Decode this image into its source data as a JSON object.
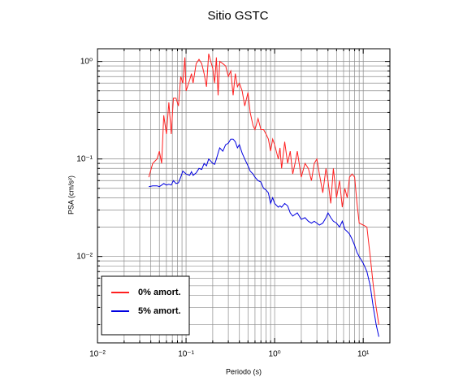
{
  "chart_data": {
    "type": "line",
    "title": "Sitio GSTC",
    "xlabel": "Periodo (s)",
    "ylabel": "PSA (cm/s²)",
    "xscale": "log",
    "yscale": "log",
    "grid": true,
    "legend": "lower left",
    "xlim": [
      0.01,
      20
    ],
    "ylim": [
      0.0013,
      1.35
    ],
    "xticks": [
      {
        "value": 0.01,
        "label": "10⁻²"
      },
      {
        "value": 0.1,
        "label": "10⁻¹"
      },
      {
        "value": 1,
        "label": "10⁰"
      },
      {
        "value": 10,
        "label": "10¹"
      }
    ],
    "yticks": [
      {
        "value": 0.01,
        "label": "10⁻²"
      },
      {
        "value": 0.1,
        "label": "10⁻¹"
      },
      {
        "value": 1,
        "label": "10⁰"
      }
    ],
    "x": [
      0.038,
      0.042,
      0.047,
      0.05,
      0.053,
      0.056,
      0.06,
      0.064,
      0.068,
      0.072,
      0.077,
      0.082,
      0.087,
      0.092,
      0.097,
      0.1,
      0.11,
      0.115,
      0.12,
      0.13,
      0.14,
      0.15,
      0.16,
      0.17,
      0.18,
      0.19,
      0.2,
      0.21,
      0.22,
      0.23,
      0.24,
      0.26,
      0.28,
      0.3,
      0.32,
      0.34,
      0.36,
      0.38,
      0.4,
      0.43,
      0.46,
      0.5,
      0.53,
      0.57,
      0.6,
      0.65,
      0.7,
      0.75,
      0.8,
      0.85,
      0.9,
      0.95,
      1.0,
      1.1,
      1.15,
      1.2,
      1.3,
      1.4,
      1.5,
      1.6,
      1.7,
      1.8,
      2.0,
      2.2,
      2.4,
      2.6,
      2.8,
      3.0,
      3.2,
      3.5,
      3.8,
      4.0,
      4.3,
      4.6,
      5.0,
      5.4,
      5.8,
      6.2,
      6.6,
      7.0,
      7.5,
      8.0,
      8.5,
      9.0,
      10,
      11,
      12,
      13,
      14,
      15
    ],
    "series": [
      {
        "name": "0% amort.",
        "color": "#ff2020",
        "values": [
          0.065,
          0.09,
          0.1,
          0.12,
          0.09,
          0.28,
          0.18,
          0.38,
          0.18,
          0.42,
          0.42,
          0.35,
          0.7,
          0.6,
          1.1,
          0.5,
          0.65,
          0.75,
          0.6,
          0.95,
          1.05,
          0.95,
          0.75,
          0.55,
          1.2,
          1.0,
          0.85,
          0.6,
          1.1,
          0.45,
          1.0,
          0.95,
          0.9,
          0.7,
          0.8,
          0.45,
          0.75,
          0.55,
          0.6,
          0.5,
          0.35,
          0.48,
          0.3,
          0.22,
          0.2,
          0.26,
          0.2,
          0.2,
          0.18,
          0.16,
          0.12,
          0.16,
          0.14,
          0.1,
          0.13,
          0.08,
          0.15,
          0.09,
          0.12,
          0.07,
          0.09,
          0.12,
          0.065,
          0.09,
          0.08,
          0.06,
          0.09,
          0.1,
          0.07,
          0.045,
          0.08,
          0.06,
          0.035,
          0.08,
          0.04,
          0.06,
          0.032,
          0.05,
          0.04,
          0.065,
          0.07,
          0.065,
          0.035,
          0.022,
          0.021,
          0.02,
          0.01,
          0.005,
          0.003,
          0.002
        ]
      },
      {
        "name": "5% amort.",
        "color": "#0000e0",
        "values": [
          0.052,
          0.053,
          0.053,
          0.052,
          0.054,
          0.056,
          0.054,
          0.055,
          0.054,
          0.06,
          0.056,
          0.057,
          0.065,
          0.075,
          0.072,
          0.07,
          0.068,
          0.074,
          0.068,
          0.072,
          0.08,
          0.078,
          0.09,
          0.085,
          0.1,
          0.095,
          0.09,
          0.088,
          0.1,
          0.115,
          0.13,
          0.12,
          0.14,
          0.145,
          0.16,
          0.16,
          0.15,
          0.13,
          0.14,
          0.115,
          0.1,
          0.085,
          0.075,
          0.07,
          0.065,
          0.06,
          0.058,
          0.05,
          0.048,
          0.045,
          0.035,
          0.04,
          0.035,
          0.032,
          0.033,
          0.032,
          0.035,
          0.033,
          0.028,
          0.026,
          0.027,
          0.028,
          0.024,
          0.025,
          0.023,
          0.022,
          0.023,
          0.022,
          0.021,
          0.022,
          0.025,
          0.028,
          0.025,
          0.023,
          0.022,
          0.02,
          0.023,
          0.019,
          0.018,
          0.017,
          0.015,
          0.013,
          0.011,
          0.01,
          0.0085,
          0.007,
          0.005,
          0.003,
          0.002,
          0.0015
        ]
      }
    ]
  }
}
